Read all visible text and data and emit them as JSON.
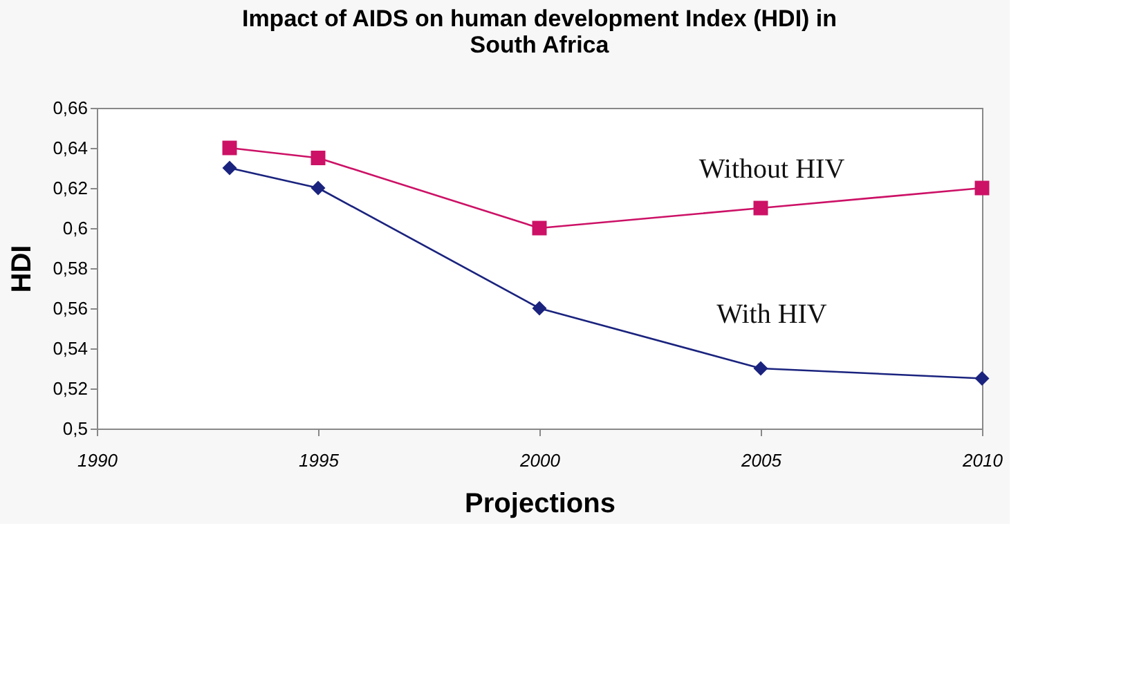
{
  "chart_data": {
    "type": "line",
    "title": "Impact of AIDS on human development Index (HDI) in South Africa",
    "xlabel": "Projections",
    "ylabel": "HDI",
    "x": [
      1993,
      1995,
      2000,
      2005,
      2010
    ],
    "series": [
      {
        "name": "Without HIV",
        "color": "#cc1166",
        "marker": "square",
        "values": [
          0.64,
          0.635,
          0.6,
          0.61,
          0.62
        ]
      },
      {
        "name": "With HIV",
        "color": "#1a237e",
        "marker": "diamond",
        "values": [
          0.63,
          0.62,
          0.56,
          0.53,
          0.525
        ]
      }
    ],
    "xlim": [
      1990,
      2010
    ],
    "xticks": [
      1990,
      1995,
      2000,
      2005,
      2010
    ],
    "ylim": [
      0.5,
      0.66
    ],
    "yticks": [
      {
        "value": 0.5,
        "label": "0,5"
      },
      {
        "value": 0.52,
        "label": "0,52"
      },
      {
        "value": 0.54,
        "label": "0,54"
      },
      {
        "value": 0.56,
        "label": "0,56"
      },
      {
        "value": 0.58,
        "label": "0,58"
      },
      {
        "value": 0.6,
        "label": "0,6"
      },
      {
        "value": 0.62,
        "label": "0,62"
      },
      {
        "value": 0.64,
        "label": "0,64"
      },
      {
        "value": 0.66,
        "label": "0,66"
      }
    ],
    "grid": false,
    "legend": false,
    "line_style": "solid"
  }
}
